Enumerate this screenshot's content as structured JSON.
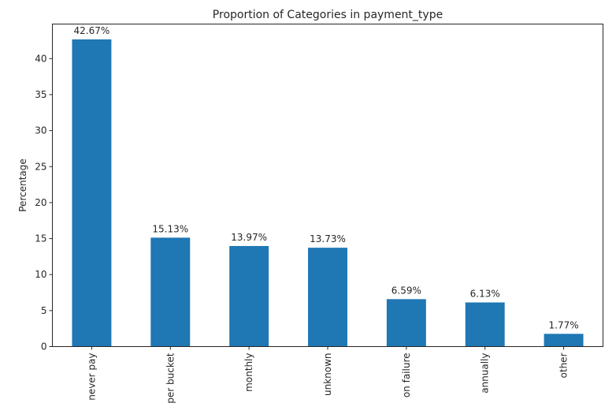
{
  "chart_data": {
    "type": "bar",
    "title": "Proportion of Categories in payment_type",
    "xlabel": "",
    "ylabel": "Percentage",
    "categories": [
      "never pay",
      "per bucket",
      "monthly",
      "unknown",
      "on failure",
      "annually",
      "other"
    ],
    "values": [
      42.67,
      15.13,
      13.97,
      13.73,
      6.59,
      6.13,
      1.77
    ],
    "data_labels": [
      "42.67%",
      "15.13%",
      "13.97%",
      "13.73%",
      "6.59%",
      "6.13%",
      "1.77%"
    ],
    "ylim": [
      0,
      44.8
    ],
    "yticks": [
      0,
      5,
      10,
      15,
      20,
      25,
      30,
      35,
      40
    ],
    "bar_color": "#1f77b4",
    "grid": false,
    "legend": "none"
  }
}
